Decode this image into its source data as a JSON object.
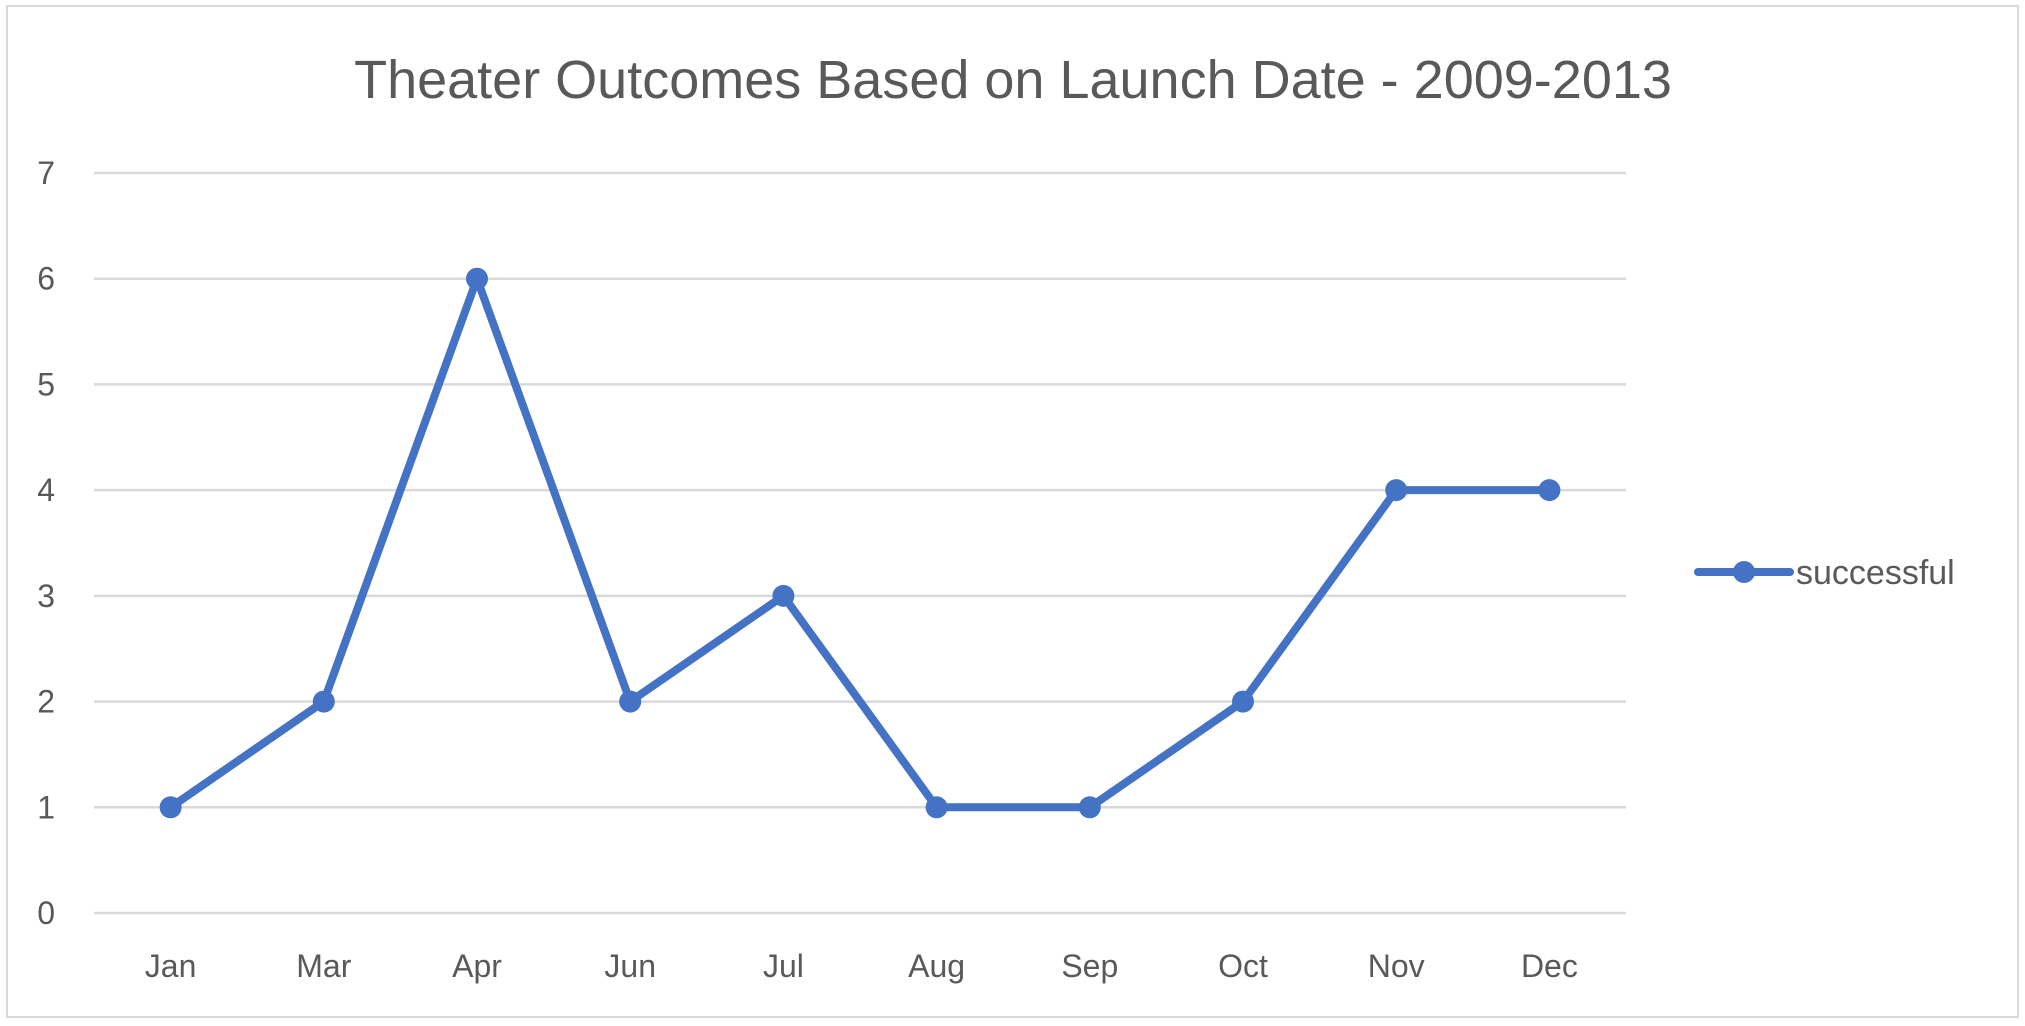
{
  "chart_data": {
    "type": "line",
    "title": "Theater Outcomes Based on Launch Date - 2009-2013",
    "xlabel": "",
    "ylabel": "",
    "categories": [
      "Jan",
      "Mar",
      "Apr",
      "Jun",
      "Jul",
      "Aug",
      "Sep",
      "Oct",
      "Nov",
      "Dec"
    ],
    "series": [
      {
        "name": "successful",
        "values": [
          1,
          2,
          6,
          2,
          3,
          1,
          1,
          2,
          4,
          4
        ],
        "color": "#4472c4"
      }
    ],
    "ylim": [
      0,
      7
    ],
    "yticks": [
      "0",
      "1",
      "2",
      "3",
      "4",
      "5",
      "6",
      "7"
    ],
    "grid": true,
    "legend_position": "right"
  }
}
